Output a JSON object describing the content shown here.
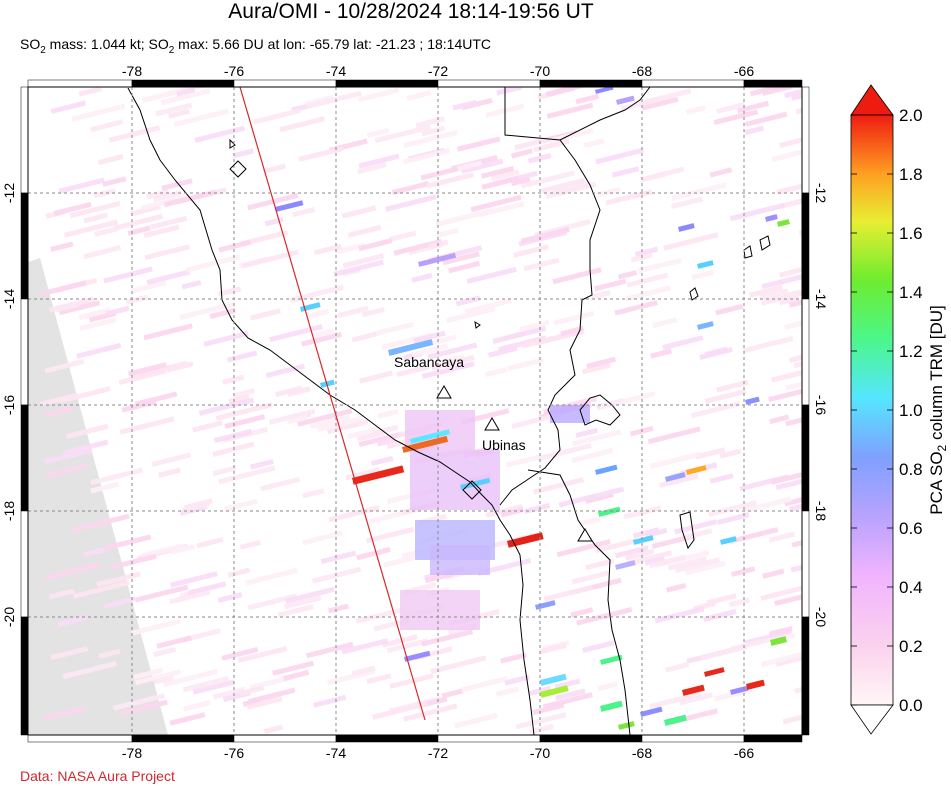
{
  "header": {
    "title": "Aura/OMI - 10/28/2024 18:14-19:56 UT",
    "subtitle_prefix": "SO",
    "subtitle_sub": "2",
    "subtitle_mid": " mass: 1.044 kt; SO",
    "subtitle_sub2": "2",
    "subtitle_rest": " max: 5.66 DU at lon: -65.79 lat: -21.23 ; 18:14UTC"
  },
  "map": {
    "lon_ticks": [
      "-78",
      "-76",
      "-74",
      "-72",
      "-70",
      "-68",
      "-66"
    ],
    "lat_ticks": [
      "-12",
      "-14",
      "-16",
      "-18",
      "-20"
    ],
    "volcanoes": [
      {
        "name": "Sabancaya",
        "lon": -71.85,
        "lat": -15.78
      },
      {
        "name": "Ubinas",
        "lon": -70.9,
        "lat": -16.36
      }
    ],
    "swath_edge_color": "#d8282a",
    "coast_color": "#000000",
    "missing_color": "#e3e3e3"
  },
  "colorbar": {
    "label_prefix": "PCA SO",
    "label_sub": "2",
    "label_rest": " column TRM [DU]",
    "ticks": [
      "2.0",
      "1.8",
      "1.6",
      "1.4",
      "1.2",
      "1.0",
      "0.8",
      "0.6",
      "0.4",
      "0.2",
      "0.0"
    ],
    "stops": [
      "#fff5f5",
      "#fbc8ef",
      "#d9a3ff",
      "#8c9bff",
      "#5fd0ff",
      "#55ff9a",
      "#7fef3a",
      "#f2f23a",
      "#ffb32a",
      "#ff5a1a",
      "#e41d10"
    ]
  },
  "footer": {
    "credit": "Data: NASA Aura Project"
  }
}
